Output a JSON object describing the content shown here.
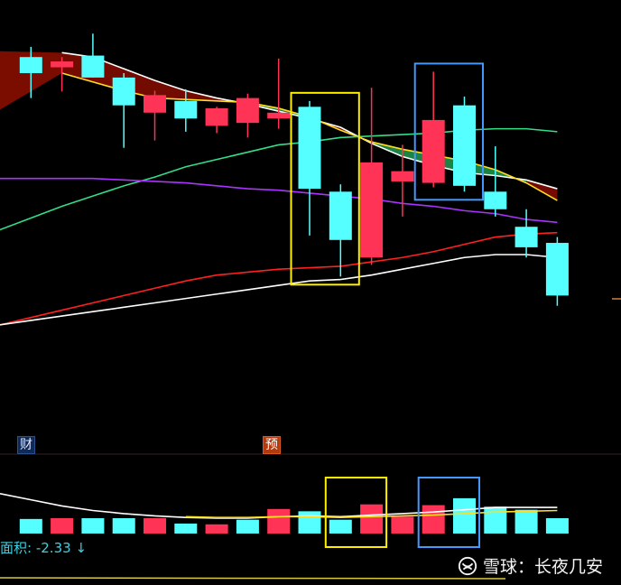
{
  "colors": {
    "background": "#000000",
    "up": "#ff3355",
    "down": "#55ffff",
    "ma_white": "#ffffff",
    "ma_yellow": "#ffdd22",
    "ma_green": "#33dd88",
    "ma_purple": "#aa33ff",
    "ma_red": "#ff2020",
    "ribbon_bull": "#1d8a48",
    "ribbon_bear": "#7a0c00",
    "box_yellow": "#ffee00",
    "box_blue": "#4499ff"
  },
  "markers": {
    "cai": "财",
    "yu": "预"
  },
  "indicator": {
    "label": "面积:",
    "value": "-2.33",
    "arrow": "↓"
  },
  "watermark": {
    "logo_icon": "snowball-logo-icon",
    "text": "雪球：长夜几安"
  },
  "chart_data": [
    {
      "type": "candlestick",
      "x": [
        1,
        2,
        3,
        4,
        5,
        6,
        7,
        8,
        9,
        10,
        11,
        12,
        13,
        14,
        15,
        16,
        17,
        18
      ],
      "candles": [
        {
          "o": 98.2,
          "h": 99.6,
          "l": 92.6,
          "c": 96.0
        },
        {
          "o": 96.8,
          "h": 98.2,
          "l": 93.5,
          "c": 97.6
        },
        {
          "o": 98.4,
          "h": 101.4,
          "l": 95.4,
          "c": 95.4
        },
        {
          "o": 95.4,
          "h": 96.0,
          "l": 85.8,
          "c": 91.6
        },
        {
          "o": 90.6,
          "h": 93.6,
          "l": 86.8,
          "c": 93.0
        },
        {
          "o": 92.2,
          "h": 93.8,
          "l": 88.0,
          "c": 89.8
        },
        {
          "o": 88.8,
          "h": 91.4,
          "l": 87.8,
          "c": 91.2
        },
        {
          "o": 89.2,
          "h": 93.2,
          "l": 87.2,
          "c": 92.6
        },
        {
          "o": 89.8,
          "h": 98.0,
          "l": 88.4,
          "c": 90.6
        },
        {
          "o": 91.4,
          "h": 92.2,
          "l": 73.8,
          "c": 80.2
        },
        {
          "o": 79.8,
          "h": 80.8,
          "l": 68.2,
          "c": 73.2
        },
        {
          "o": 70.8,
          "h": 94.0,
          "l": 69.8,
          "c": 83.8
        },
        {
          "o": 81.2,
          "h": 86.2,
          "l": 76.4,
          "c": 82.6
        },
        {
          "o": 81.0,
          "h": 96.2,
          "l": 80.4,
          "c": 89.6
        },
        {
          "o": 91.6,
          "h": 92.8,
          "l": 79.8,
          "c": 80.6
        },
        {
          "o": 79.8,
          "h": 86.0,
          "l": 76.4,
          "c": 77.4
        },
        {
          "o": 75.0,
          "h": 77.4,
          "l": 70.8,
          "c": 72.2
        },
        {
          "o": 72.8,
          "h": 73.6,
          "l": 64.2,
          "c": 65.6
        }
      ],
      "moving_averages": [
        {
          "color": "white",
          "values": [
            null,
            98.8,
            98.2,
            96.6,
            95.0,
            93.6,
            92.6,
            91.8,
            90.8,
            89.8,
            88.6,
            86.4,
            84.6,
            83.4,
            82.4,
            82.0,
            81.4,
            80.2
          ]
        },
        {
          "color": "yellow",
          "values": [
            null,
            96.0,
            94.8,
            93.6,
            92.6,
            92.4,
            92.2,
            92.0,
            91.2,
            90.0,
            88.2,
            86.6,
            85.6,
            84.8,
            84.0,
            82.8,
            81.0,
            78.6
          ]
        },
        {
          "color": "green",
          "values": [
            76.2,
            77.8,
            79.2,
            80.6,
            81.8,
            83.2,
            84.2,
            85.2,
            86.2,
            86.6,
            87.2,
            87.4,
            87.6,
            87.8,
            88.2,
            88.4,
            88.4,
            88.0
          ]
        },
        {
          "color": "purple",
          "values": [
            81.6,
            81.6,
            81.6,
            81.4,
            81.2,
            81.0,
            80.6,
            80.2,
            80.0,
            79.6,
            79.2,
            78.8,
            78.2,
            77.8,
            77.2,
            76.8,
            76.0,
            75.6
          ]
        },
        {
          "color": "red",
          "values": [
            62.6,
            63.6,
            64.6,
            65.6,
            66.6,
            67.6,
            68.4,
            68.8,
            69.2,
            69.4,
            69.6,
            70.2,
            70.8,
            71.6,
            72.6,
            73.6,
            74.0,
            74.2
          ]
        },
        {
          "color": "white",
          "values": [
            62.2,
            62.8,
            63.4,
            64.0,
            64.6,
            65.2,
            65.8,
            66.4,
            67.0,
            67.6,
            67.8,
            68.4,
            69.2,
            70.0,
            70.8,
            71.2,
            71.2,
            70.8
          ]
        }
      ],
      "highlight_boxes": [
        {
          "color": "yellow",
          "from": 10,
          "to": 11
        },
        {
          "color": "blue",
          "from": 14,
          "to": 15
        }
      ]
    },
    {
      "type": "bar",
      "x": [
        1,
        2,
        3,
        4,
        5,
        6,
        7,
        8,
        9,
        10,
        11,
        12,
        13,
        14,
        15,
        16,
        17,
        18
      ],
      "values": [
        19,
        20,
        20,
        20,
        20,
        13,
        12,
        18,
        32,
        29,
        18,
        38,
        22,
        37,
        46,
        35,
        31,
        20
      ],
      "directions": [
        "down",
        "up",
        "down",
        "down",
        "up",
        "down",
        "up",
        "down",
        "up",
        "down",
        "down",
        "up",
        "up",
        "up",
        "down",
        "down",
        "down",
        "down"
      ],
      "overlay_lines": [
        {
          "color": "white",
          "values": [
            44,
            36,
            30,
            26,
            23,
            21,
            20,
            20,
            22,
            23,
            22,
            24,
            26,
            28,
            31,
            34,
            34,
            34
          ]
        },
        {
          "color": "yellow",
          "values": [
            null,
            null,
            null,
            null,
            null,
            22,
            21,
            21,
            22,
            22,
            21,
            22,
            23,
            24,
            26,
            28,
            29,
            30
          ]
        }
      ],
      "highlight_boxes": [
        {
          "color": "yellow",
          "from": 11,
          "to": 12
        },
        {
          "color": "blue",
          "from": 14,
          "to": 15
        }
      ]
    }
  ]
}
